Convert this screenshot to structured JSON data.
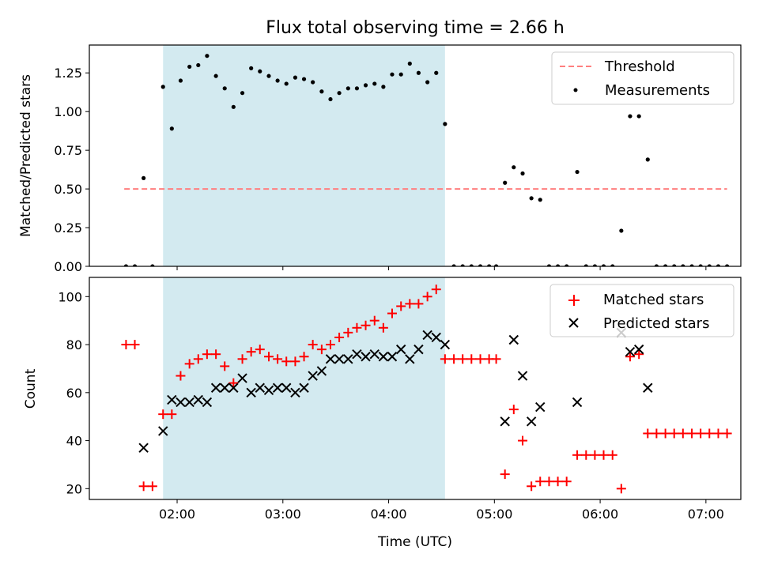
{
  "chart_data": [
    {
      "type": "scatter",
      "title": "Flux total observing time = 2.66 h",
      "xlabel": "",
      "ylabel": "Matched/Predicted stars",
      "xlim": [
        1.17,
        7.33
      ],
      "ylim": [
        0,
        1.43
      ],
      "xticks": [
        2,
        3,
        4,
        5,
        6,
        7
      ],
      "yticks": [
        0,
        0.25,
        0.5,
        0.75,
        1.0,
        1.25
      ],
      "ytick_labels": [
        "0.00",
        "0.25",
        "0.50",
        "0.75",
        "1.00",
        "1.25"
      ],
      "shaded_span": [
        1.867,
        4.533
      ],
      "shade_color": "#d3eaf0",
      "legend_position": "top-right",
      "series": [
        {
          "name": "Threshold",
          "kind": "dashed-line",
          "color": "#ff7f7f",
          "x": [
            1.5,
            7.2
          ],
          "y": [
            0.5,
            0.5
          ]
        },
        {
          "name": "Measurements",
          "kind": "dots",
          "color": "#000000",
          "x": [
            1.517,
            1.6,
            1.683,
            1.767,
            1.867,
            1.95,
            2.033,
            2.117,
            2.2,
            2.283,
            2.367,
            2.45,
            2.533,
            2.617,
            2.7,
            2.783,
            2.867,
            2.95,
            3.033,
            3.117,
            3.2,
            3.283,
            3.367,
            3.45,
            3.533,
            3.617,
            3.7,
            3.783,
            3.867,
            3.95,
            4.033,
            4.117,
            4.2,
            4.283,
            4.367,
            4.45,
            4.533,
            4.617,
            4.7,
            4.783,
            4.867,
            4.95,
            5.017,
            5.1,
            5.183,
            5.267,
            5.35,
            5.433,
            5.517,
            5.6,
            5.683,
            5.783,
            5.867,
            5.95,
            6.033,
            6.117,
            6.2,
            6.283,
            6.367,
            6.45,
            6.533,
            6.617,
            6.7,
            6.783,
            6.867,
            6.95,
            7.033,
            7.117,
            7.2
          ],
          "y": [
            0,
            0,
            0.57,
            0,
            1.16,
            0.89,
            1.2,
            1.29,
            1.3,
            1.36,
            1.23,
            1.15,
            1.03,
            1.12,
            1.28,
            1.26,
            1.23,
            1.2,
            1.18,
            1.22,
            1.21,
            1.19,
            1.13,
            1.08,
            1.12,
            1.15,
            1.15,
            1.17,
            1.18,
            1.16,
            1.24,
            1.24,
            1.31,
            1.25,
            1.19,
            1.25,
            0.92,
            0,
            0,
            0,
            0,
            0,
            0,
            0.54,
            0.64,
            0.6,
            0.44,
            0.43,
            0,
            0,
            0,
            0.61,
            0,
            0,
            0,
            0,
            0.23,
            0.97,
            0.97,
            0.69,
            0,
            0,
            0,
            0,
            0,
            0,
            0,
            0,
            0
          ]
        }
      ]
    },
    {
      "type": "scatter",
      "title": "",
      "xlabel": "Time (UTC)",
      "ylabel": "Count",
      "xlim": [
        1.17,
        7.33
      ],
      "ylim": [
        15.5,
        108
      ],
      "xticks": [
        2,
        3,
        4,
        5,
        6,
        7
      ],
      "xtick_labels": [
        "02:00",
        "03:00",
        "04:00",
        "05:00",
        "06:00",
        "07:00"
      ],
      "yticks": [
        20,
        40,
        60,
        80,
        100
      ],
      "ytick_labels": [
        "20",
        "40",
        "60",
        "80",
        "100"
      ],
      "shaded_span": [
        1.867,
        4.533
      ],
      "shade_color": "#d3eaf0",
      "legend_position": "top-right",
      "series": [
        {
          "name": "Matched stars",
          "marker": "plus",
          "color": "#ff0000",
          "x": [
            1.517,
            1.6,
            1.683,
            1.767,
            1.867,
            1.95,
            2.033,
            2.117,
            2.2,
            2.283,
            2.367,
            2.45,
            2.533,
            2.617,
            2.7,
            2.783,
            2.867,
            2.95,
            3.033,
            3.117,
            3.2,
            3.283,
            3.367,
            3.45,
            3.533,
            3.617,
            3.7,
            3.783,
            3.867,
            3.95,
            4.033,
            4.117,
            4.2,
            4.283,
            4.367,
            4.45,
            4.533,
            4.617,
            4.7,
            4.783,
            4.867,
            4.95,
            5.017,
            5.1,
            5.183,
            5.267,
            5.35,
            5.433,
            5.517,
            5.6,
            5.683,
            5.783,
            5.867,
            5.95,
            6.033,
            6.117,
            6.2,
            6.283,
            6.367,
            6.45,
            6.533,
            6.617,
            6.7,
            6.783,
            6.867,
            6.95,
            7.033,
            7.117,
            7.2
          ],
          "y": [
            80,
            80,
            21,
            21,
            51,
            51,
            67,
            72,
            74,
            76,
            76,
            71,
            64,
            74,
            77,
            78,
            75,
            74,
            73,
            73,
            75,
            80,
            78,
            80,
            83,
            85,
            87,
            88,
            90,
            87,
            93,
            96,
            97,
            97,
            100,
            103,
            74,
            74,
            74,
            74,
            74,
            74,
            74,
            26,
            53,
            40,
            21,
            23,
            23,
            23,
            23,
            34,
            34,
            34,
            34,
            34,
            20,
            75,
            76,
            43,
            43,
            43,
            43,
            43,
            43,
            43,
            43,
            43,
            43
          ]
        },
        {
          "name": "Predicted stars",
          "marker": "x",
          "color": "#000000",
          "x": [
            1.683,
            1.867,
            1.95,
            2.033,
            2.117,
            2.2,
            2.283,
            2.367,
            2.45,
            2.533,
            2.617,
            2.7,
            2.783,
            2.867,
            2.95,
            3.033,
            3.117,
            3.2,
            3.283,
            3.367,
            3.45,
            3.533,
            3.617,
            3.7,
            3.783,
            3.867,
            3.95,
            4.033,
            4.117,
            4.2,
            4.283,
            4.367,
            4.45,
            4.533,
            5.1,
            5.183,
            5.267,
            5.35,
            5.433,
            5.783,
            6.2,
            6.283,
            6.367,
            6.45
          ],
          "y": [
            37,
            44,
            57,
            56,
            56,
            57,
            56,
            62,
            62,
            62,
            66,
            60,
            62,
            61,
            62,
            62,
            60,
            62,
            67,
            69,
            74,
            74,
            74,
            76,
            75,
            76,
            75,
            75,
            78,
            74,
            78,
            84,
            83,
            80,
            48,
            82,
            67,
            48,
            54,
            56,
            85,
            77,
            78,
            62
          ]
        }
      ]
    }
  ]
}
